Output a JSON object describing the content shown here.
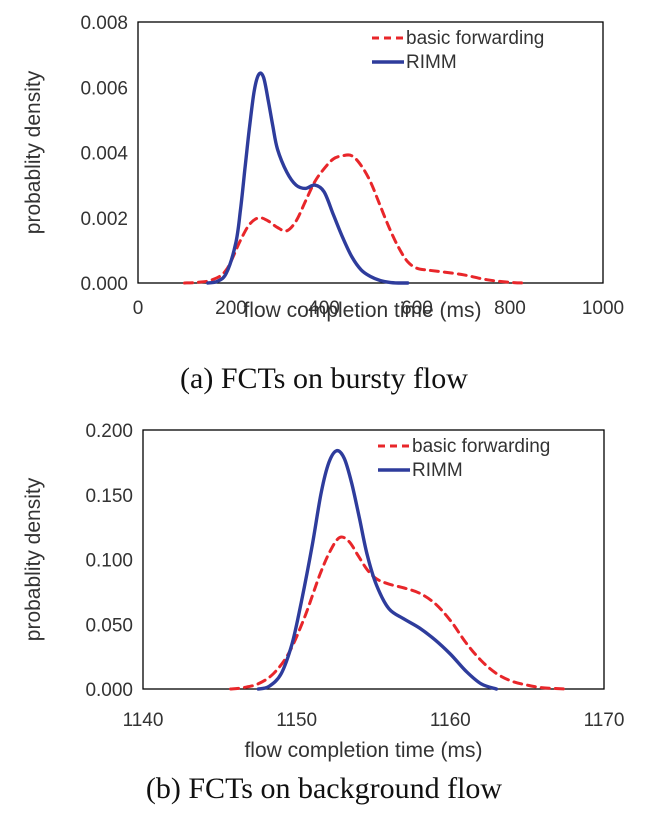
{
  "colors": {
    "basic": "#e8262a",
    "rimm": "#2e3c9c",
    "axis": "#000000"
  },
  "chart_data": [
    {
      "type": "line",
      "caption": "(a) FCTs on bursty flow",
      "xlabel": "flow completion time (ms)",
      "ylabel": "probablity density",
      "xlim": [
        0,
        1000
      ],
      "ylim": [
        0,
        0.008
      ],
      "xticks": [
        0,
        200,
        400,
        600,
        800,
        1000
      ],
      "yticks": [
        0,
        0.002,
        0.004,
        0.006,
        0.008
      ],
      "xtick_labels": [
        "0",
        "200",
        "400",
        "600",
        "800",
        "1000"
      ],
      "ytick_labels": [
        "0.000",
        "0.002",
        "0.004",
        "0.006",
        "0.008"
      ],
      "legend": "top-right",
      "series": [
        {
          "name": "basic forwarding",
          "style": "dashed",
          "x": [
            100,
            130,
            160,
            190,
            220,
            240,
            260,
            280,
            300,
            320,
            340,
            360,
            380,
            400,
            420,
            440,
            460,
            480,
            500,
            520,
            540,
            560,
            580,
            600,
            620,
            650,
            700,
            750,
            800,
            830
          ],
          "y": [
            0.0,
            2e-05,
            0.0001,
            0.0004,
            0.0013,
            0.0018,
            0.002,
            0.0019,
            0.0017,
            0.0016,
            0.0019,
            0.0025,
            0.0031,
            0.0035,
            0.0038,
            0.0039,
            0.0039,
            0.0036,
            0.0031,
            0.0024,
            0.0017,
            0.0011,
            0.00065,
            0.00045,
            0.0004,
            0.00035,
            0.00025,
            0.0001,
            2e-05,
            0.0
          ]
        },
        {
          "name": "RIMM",
          "style": "solid",
          "x": [
            150,
            170,
            190,
            210,
            220,
            230,
            240,
            250,
            260,
            270,
            280,
            290,
            300,
            320,
            340,
            360,
            380,
            400,
            420,
            440,
            460,
            480,
            500,
            520,
            540,
            560,
            580
          ],
          "y": [
            0.0,
            5e-05,
            0.0003,
            0.0012,
            0.0022,
            0.0035,
            0.0048,
            0.0059,
            0.0064,
            0.0063,
            0.0056,
            0.0048,
            0.0041,
            0.0034,
            0.003,
            0.0029,
            0.003,
            0.0028,
            0.0021,
            0.0014,
            0.0008,
            0.0004,
            0.0002,
            8e-05,
            2e-05,
            0.0,
            0.0
          ]
        }
      ]
    },
    {
      "type": "line",
      "caption": "(b) FCTs on background flow",
      "xlabel": "flow completion time (ms)",
      "ylabel": "probablity density",
      "xlim": [
        1140,
        1170
      ],
      "ylim": [
        0,
        0.2
      ],
      "xticks": [
        1140,
        1150,
        1160,
        1170
      ],
      "yticks": [
        0,
        0.05,
        0.1,
        0.15,
        0.2
      ],
      "xtick_labels": [
        "1140",
        "1150",
        "1160",
        "1170"
      ],
      "ytick_labels": [
        "0.000",
        "0.050",
        "0.100",
        "0.150",
        "0.200"
      ],
      "legend": "top-right",
      "series": [
        {
          "name": "basic forwarding",
          "style": "dashed",
          "x": [
            1145.7,
            1146.5,
            1147.5,
            1148.5,
            1149.5,
            1150.5,
            1151.5,
            1152.2,
            1152.8,
            1153.4,
            1154,
            1154.6,
            1155.2,
            1156,
            1157,
            1158,
            1159,
            1160,
            1161,
            1162,
            1163,
            1164,
            1165,
            1166,
            1167.5
          ],
          "y": [
            0.0,
            0.001,
            0.004,
            0.012,
            0.028,
            0.055,
            0.088,
            0.107,
            0.117,
            0.114,
            0.103,
            0.092,
            0.085,
            0.081,
            0.078,
            0.074,
            0.066,
            0.053,
            0.036,
            0.022,
            0.012,
            0.006,
            0.003,
            0.001,
            0.0
          ]
        },
        {
          "name": "RIMM",
          "style": "solid",
          "x": [
            1147.5,
            1148.2,
            1149,
            1149.7,
            1150.3,
            1151,
            1151.6,
            1152.1,
            1152.6,
            1153.1,
            1153.6,
            1154.1,
            1154.6,
            1155.2,
            1156,
            1157,
            1158,
            1159,
            1160,
            1161,
            1162,
            1163
          ],
          "y": [
            0.0,
            0.002,
            0.012,
            0.035,
            0.067,
            0.11,
            0.152,
            0.175,
            0.184,
            0.178,
            0.158,
            0.131,
            0.103,
            0.08,
            0.062,
            0.054,
            0.047,
            0.038,
            0.027,
            0.014,
            0.004,
            0.0
          ]
        }
      ]
    }
  ]
}
